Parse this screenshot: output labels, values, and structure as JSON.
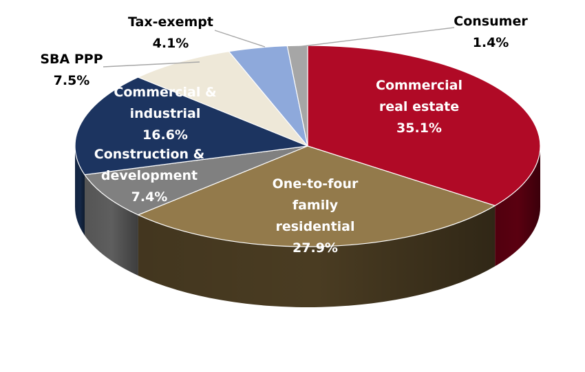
{
  "chart_data": {
    "type": "pie",
    "three_d": true,
    "title": "",
    "start_angle_deg": 90,
    "direction": "clockwise",
    "categories": [
      "Commercial real estate",
      "One-to-four family residential",
      "Construction & development",
      "Commercial & industrial",
      "SBA PPP",
      "Tax-exempt",
      "Consumer"
    ],
    "values": [
      35.1,
      27.9,
      7.4,
      16.6,
      7.5,
      4.1,
      1.4
    ],
    "labels": [
      {
        "lines": [
          "Commercial",
          "real estate"
        ],
        "value": "35.1%"
      },
      {
        "lines": [
          "One-to-four",
          "family",
          "residential"
        ],
        "value": "27.9%"
      },
      {
        "lines": [
          "Construction &",
          "development"
        ],
        "value": "7.4%"
      },
      {
        "lines": [
          "Commercial &",
          "industrial"
        ],
        "value": "16.6%"
      },
      {
        "lines": [
          "SBA PPP"
        ],
        "value": "7.5%"
      },
      {
        "lines": [
          "Tax-exempt"
        ],
        "value": "4.1%"
      },
      {
        "lines": [
          "Consumer"
        ],
        "value": "1.4%"
      }
    ],
    "colors": [
      "#B00A26",
      "#937A4B",
      "#808080",
      "#1C3460",
      "#EEE8D8",
      "#8EA9DB",
      "#A6A6A6"
    ],
    "side_colors": [
      "#5A0010",
      "#4A3C22",
      "#5E5E5E",
      "#152848",
      "#CFC6AE",
      "#6C86B4",
      "#7F7F7F"
    ],
    "label_colors": [
      "#FFFFFF",
      "#FFFFFF",
      "#FFFFFF",
      "#FFFFFF",
      "#000000",
      "#000000",
      "#000000"
    ],
    "label_placement": [
      "inside",
      "inside",
      "inside",
      "inside",
      "outside",
      "outside",
      "outside"
    ]
  }
}
